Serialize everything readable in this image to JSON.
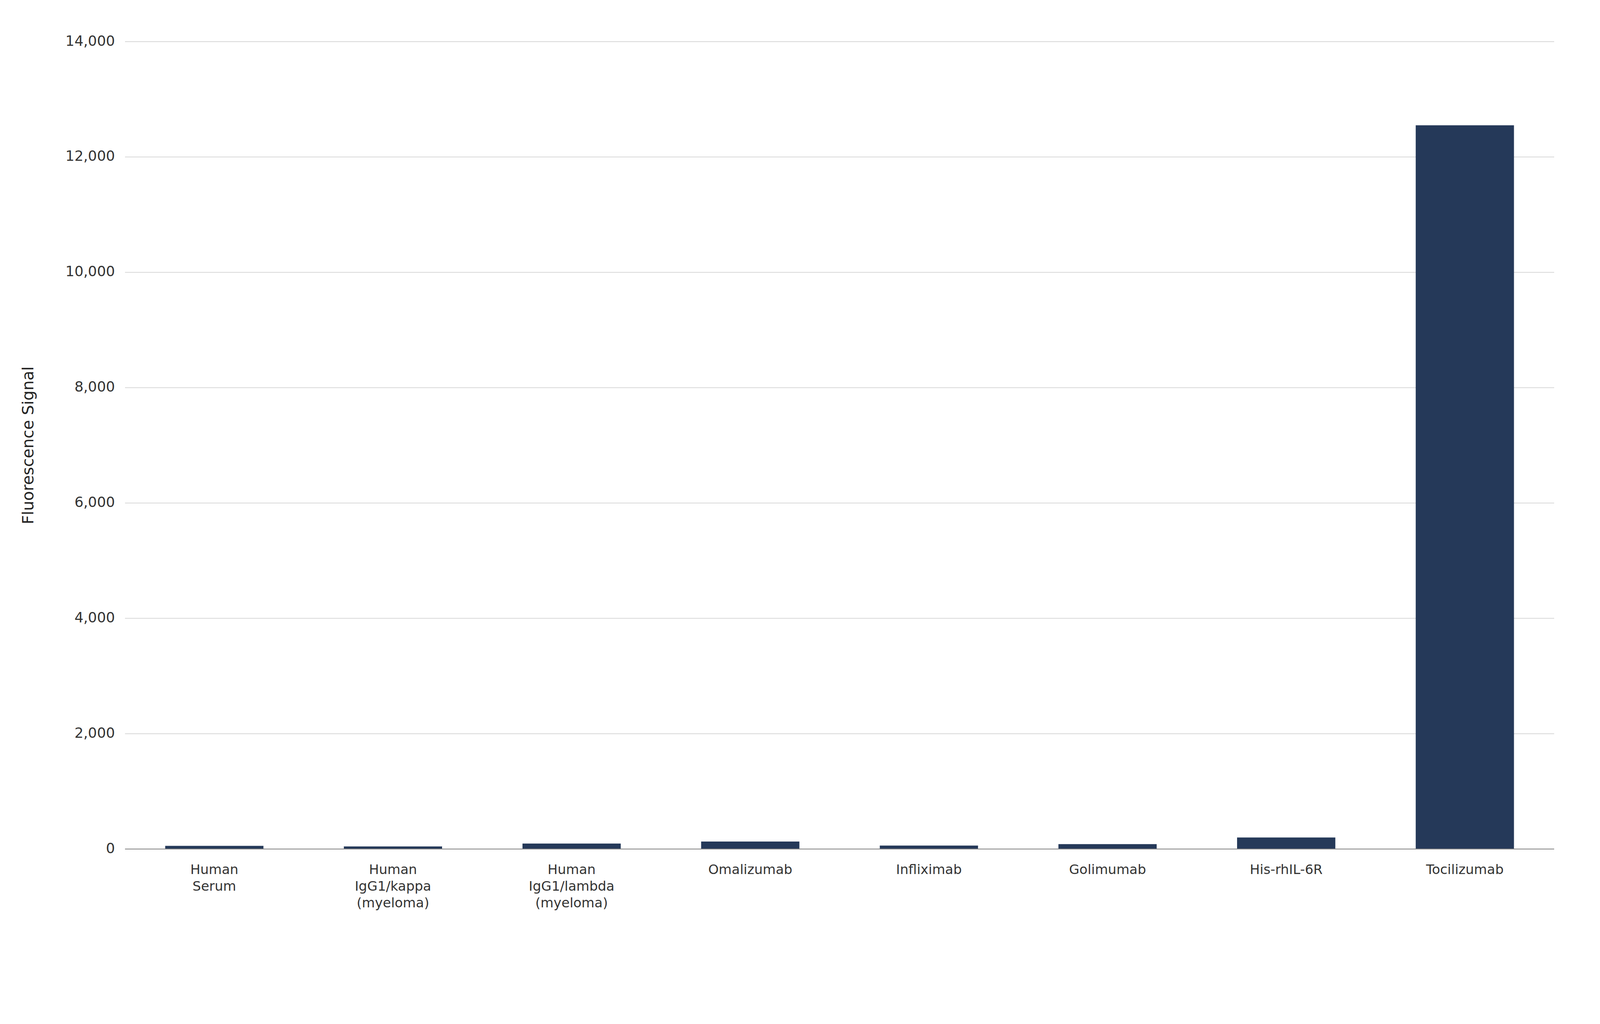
{
  "chart_data": {
    "type": "bar",
    "categories": [
      "Human\nSerum",
      "Human\nIgG1/kappa\n(myeloma)",
      "Human\nIgG1/lambda\n(myeloma)",
      "Omalizumab",
      "Infliximab",
      "Golimumab",
      "His-rhIL-6R",
      "Tocilizumab"
    ],
    "values": [
      55,
      45,
      95,
      130,
      60,
      85,
      200,
      12550
    ],
    "color": "#253959",
    "ylabel": "Fluorescence Signal",
    "ylim": [
      0,
      14000
    ],
    "yticks": [
      0,
      {
        "value": 2000,
        "label": "2,000"
      },
      {
        "value": 4000,
        "label": "4,000"
      },
      {
        "value": 6000,
        "label": "6,000"
      },
      {
        "value": 8000,
        "label": "8,000"
      },
      {
        "value": 10000,
        "label": "10,000"
      },
      {
        "value": 12000,
        "label": "12,000"
      },
      {
        "value": 14000,
        "label": "14,000"
      }
    ],
    "grid": true
  }
}
